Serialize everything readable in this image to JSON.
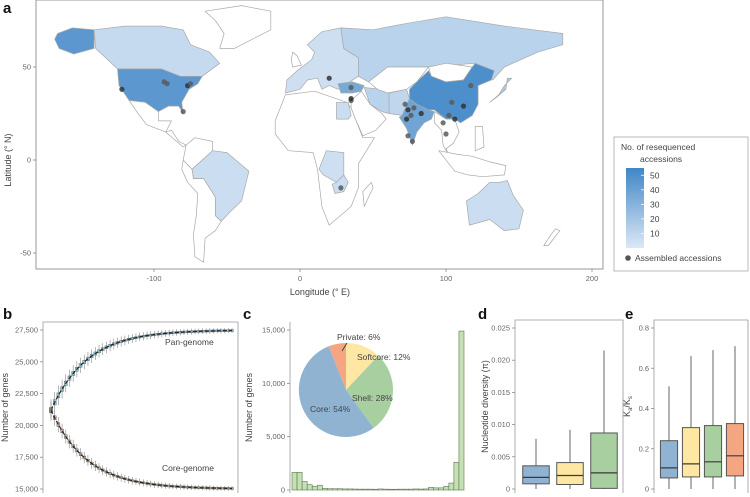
{
  "chart_data": [
    {
      "panel": "a",
      "type": "heatmap",
      "subtype": "choropleth-map",
      "xlabel": "Longitude (° E)",
      "ylabel": "Latitude (° N)",
      "xticks": [
        -100,
        0,
        100,
        200
      ],
      "yticks": [
        -50,
        0,
        50
      ],
      "xlim": [
        -180,
        210
      ],
      "ylim": [
        -60,
        85
      ],
      "legend": {
        "title": "No. of resequenced accessions",
        "colorbar_ticks": [
          10,
          20,
          30,
          40,
          50
        ],
        "colorbar_range": [
          0,
          55
        ],
        "color_low": "#dce8f6",
        "color_high": "#3f86c6",
        "point_label": "Assembled accessions",
        "point_color": "#555555",
        "placement": "right"
      },
      "countries": [
        {
          "name": "United States",
          "value": 45
        },
        {
          "name": "Alaska (USA)",
          "value": 45
        },
        {
          "name": "Canada",
          "value": 8
        },
        {
          "name": "China",
          "value": 50
        },
        {
          "name": "India",
          "value": 38
        },
        {
          "name": "Turkey",
          "value": 35
        },
        {
          "name": "Russia",
          "value": 12
        },
        {
          "name": "Brazil",
          "value": 6
        },
        {
          "name": "Australia",
          "value": 6
        },
        {
          "name": "Japan",
          "value": 18
        },
        {
          "name": "Iran",
          "value": 12
        },
        {
          "name": "Pakistan",
          "value": 10
        },
        {
          "name": "Zambia",
          "value": 6
        },
        {
          "name": "DR Congo",
          "value": 5
        },
        {
          "name": "Egypt",
          "value": 6
        }
      ],
      "assembled_points": [
        {
          "lon": -122,
          "lat": 38
        },
        {
          "lon": -93,
          "lat": 42
        },
        {
          "lon": -91,
          "lat": 41
        },
        {
          "lon": -77,
          "lat": 40
        },
        {
          "lon": -75,
          "lat": 41
        },
        {
          "lon": -80,
          "lat": 26
        },
        {
          "lon": 20,
          "lat": 44
        },
        {
          "lon": 35,
          "lat": 39
        },
        {
          "lon": 35,
          "lat": 32
        },
        {
          "lon": 35,
          "lat": 33
        },
        {
          "lon": 28,
          "lat": -15
        },
        {
          "lon": 72,
          "lat": 30
        },
        {
          "lon": 74,
          "lat": 27
        },
        {
          "lon": 76,
          "lat": 24
        },
        {
          "lon": 78,
          "lat": 28
        },
        {
          "lon": 73,
          "lat": 22
        },
        {
          "lon": 74,
          "lat": 13
        },
        {
          "lon": 77,
          "lat": 10
        },
        {
          "lon": 83,
          "lat": 25
        },
        {
          "lon": 117,
          "lat": 40
        },
        {
          "lon": 104,
          "lat": 31
        },
        {
          "lon": 112,
          "lat": 29
        },
        {
          "lon": 102,
          "lat": 24
        },
        {
          "lon": 100,
          "lat": 14
        },
        {
          "lon": 106,
          "lat": 22
        },
        {
          "lon": 98,
          "lat": 20
        }
      ]
    },
    {
      "panel": "b",
      "type": "line",
      "ylabel": "Number of genes",
      "xlabel": "",
      "ylim": [
        15000,
        27500
      ],
      "yticks": [
        15000,
        17500,
        20000,
        22500,
        25000,
        27500
      ],
      "series": [
        {
          "name": "Pan-genome",
          "color": "#3aa9c9",
          "start": 21200,
          "plateau": 27500
        },
        {
          "name": "Core-genome",
          "color": "#a07a4a",
          "start": 21200,
          "plateau": 15000
        }
      ],
      "annotations": [
        "Pan-genome",
        "Core-genome"
      ]
    },
    {
      "panel": "c",
      "type": "bar",
      "ylabel": "Number of genes",
      "xlabel": "",
      "ylim": [
        0,
        15000
      ],
      "yticks": [
        0,
        5000,
        10000,
        15000
      ],
      "bar_color": "#c5e0b4",
      "values": [
        1650,
        1650,
        800,
        500,
        350,
        450,
        150,
        120,
        120,
        120,
        100,
        100,
        90,
        80,
        80,
        80,
        70,
        100,
        80,
        70,
        70,
        80,
        80,
        80,
        100,
        90,
        100,
        250,
        200,
        200,
        350,
        650,
        2600,
        14900
      ],
      "inset_pie": {
        "type": "pie",
        "slices": [
          {
            "label": "Core",
            "value": 54,
            "color": "#8fb3d1",
            "text": "Core: 54%"
          },
          {
            "label": "Shell",
            "value": 28,
            "color": "#a8cfa0",
            "text": "Shell: 28%"
          },
          {
            "label": "Softcore",
            "value": 12,
            "color": "#fde7a3",
            "text": "Softcore: 12%"
          },
          {
            "label": "Private",
            "value": 6,
            "color": "#f4a582",
            "text": "Private: 6%"
          }
        ]
      }
    },
    {
      "panel": "d",
      "type": "bar",
      "subtype": "boxplot",
      "ylabel": "Nucleotide diversity (π)",
      "ylim": [
        0,
        0.025
      ],
      "yticks": [
        "0",
        "0.005",
        "0.010",
        "0.015",
        "0.020",
        "0.025"
      ],
      "ytick_values": [
        0,
        0.005,
        0.01,
        0.015,
        0.02,
        0.025
      ],
      "boxes": [
        {
          "group": "Core",
          "color": "#8fb3d1",
          "min": 0,
          "q1": 0.0008,
          "median": 0.0018,
          "q3": 0.0036,
          "max": 0.0078
        },
        {
          "group": "Softcore",
          "color": "#fde7a3",
          "min": 0,
          "q1": 0.0007,
          "median": 0.0021,
          "q3": 0.0041,
          "max": 0.0092
        },
        {
          "group": "Shell",
          "color": "#a8cfa0",
          "min": 0,
          "q1": 0.0001,
          "median": 0.0025,
          "q3": 0.0087,
          "max": 0.0215
        }
      ]
    },
    {
      "panel": "e",
      "type": "bar",
      "subtype": "boxplot",
      "ylabel": "Ka/Ks",
      "ylim": [
        0,
        0.8
      ],
      "yticks": [
        "0",
        "0.2",
        "0.4",
        "0.6",
        "0.8"
      ],
      "ytick_values": [
        0,
        0.2,
        0.4,
        0.6,
        0.8
      ],
      "boxes": [
        {
          "group": "Core",
          "color": "#8fb3d1",
          "min": 0,
          "q1": 0.055,
          "median": 0.105,
          "q3": 0.24,
          "max": 0.51
        },
        {
          "group": "Softcore",
          "color": "#fde7a3",
          "min": 0,
          "q1": 0.06,
          "median": 0.125,
          "q3": 0.305,
          "max": 0.66
        },
        {
          "group": "Shell",
          "color": "#a8cfa0",
          "min": 0,
          "q1": 0.06,
          "median": 0.135,
          "q3": 0.315,
          "max": 0.69
        },
        {
          "group": "Private",
          "color": "#f4a582",
          "min": 0,
          "q1": 0.065,
          "median": 0.165,
          "q3": 0.325,
          "max": 0.71
        }
      ]
    }
  ],
  "labels": {
    "panel_a": "a",
    "panel_b": "b",
    "panel_c": "c",
    "panel_d": "d",
    "panel_e": "e"
  }
}
